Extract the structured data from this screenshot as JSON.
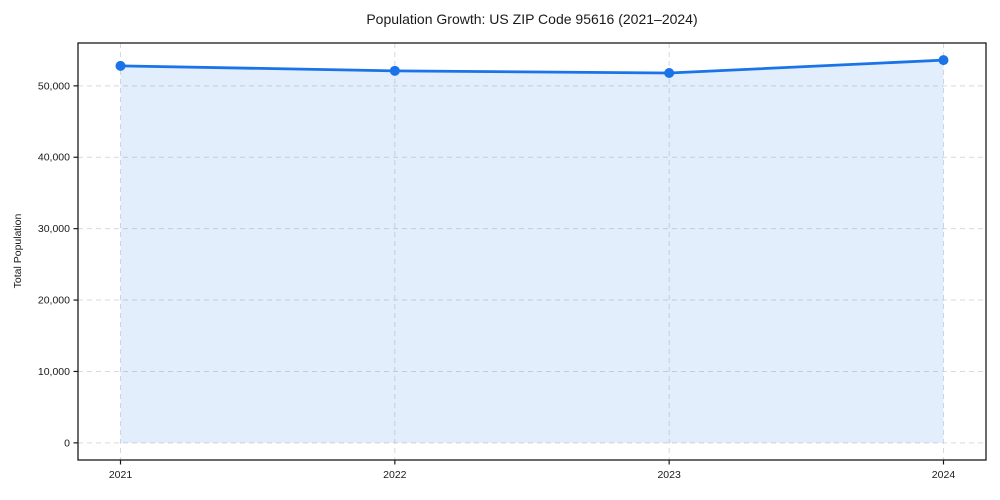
{
  "chart_data": {
    "type": "area",
    "title": "Population Growth: US ZIP Code 95616 (2021–2024)",
    "xlabel": "",
    "ylabel": "Total Population",
    "x": [
      2021,
      2022,
      2023,
      2024
    ],
    "series": [
      {
        "name": "Total Population",
        "values": [
          52800,
          52100,
          51800,
          53600
        ]
      }
    ],
    "xticks": {
      "values": [
        2021,
        2022,
        2023,
        2024
      ],
      "labels": [
        "2021",
        "2022",
        "2023",
        "2024"
      ]
    },
    "yticks": {
      "values": [
        0,
        10000,
        20000,
        30000,
        40000,
        50000
      ],
      "labels": [
        "0",
        "10,000",
        "20,000",
        "30,000",
        "40,000",
        "50,000"
      ]
    },
    "xlim": [
      2020.845,
      2024.155
    ],
    "ylim": [
      -2400,
      56000
    ],
    "grid": true,
    "grid_style": "dashed",
    "legend": false,
    "marker_radius": 5,
    "line_width": 2.8,
    "colors": {
      "line": "#1a73e8",
      "marker": "#1a73e8",
      "fill": "rgba(26,115,232,0.12)",
      "grid": "#d9d9d9",
      "axis": "#1a1a1a",
      "text": "#1a1a1a",
      "background": "#ffffff"
    }
  }
}
